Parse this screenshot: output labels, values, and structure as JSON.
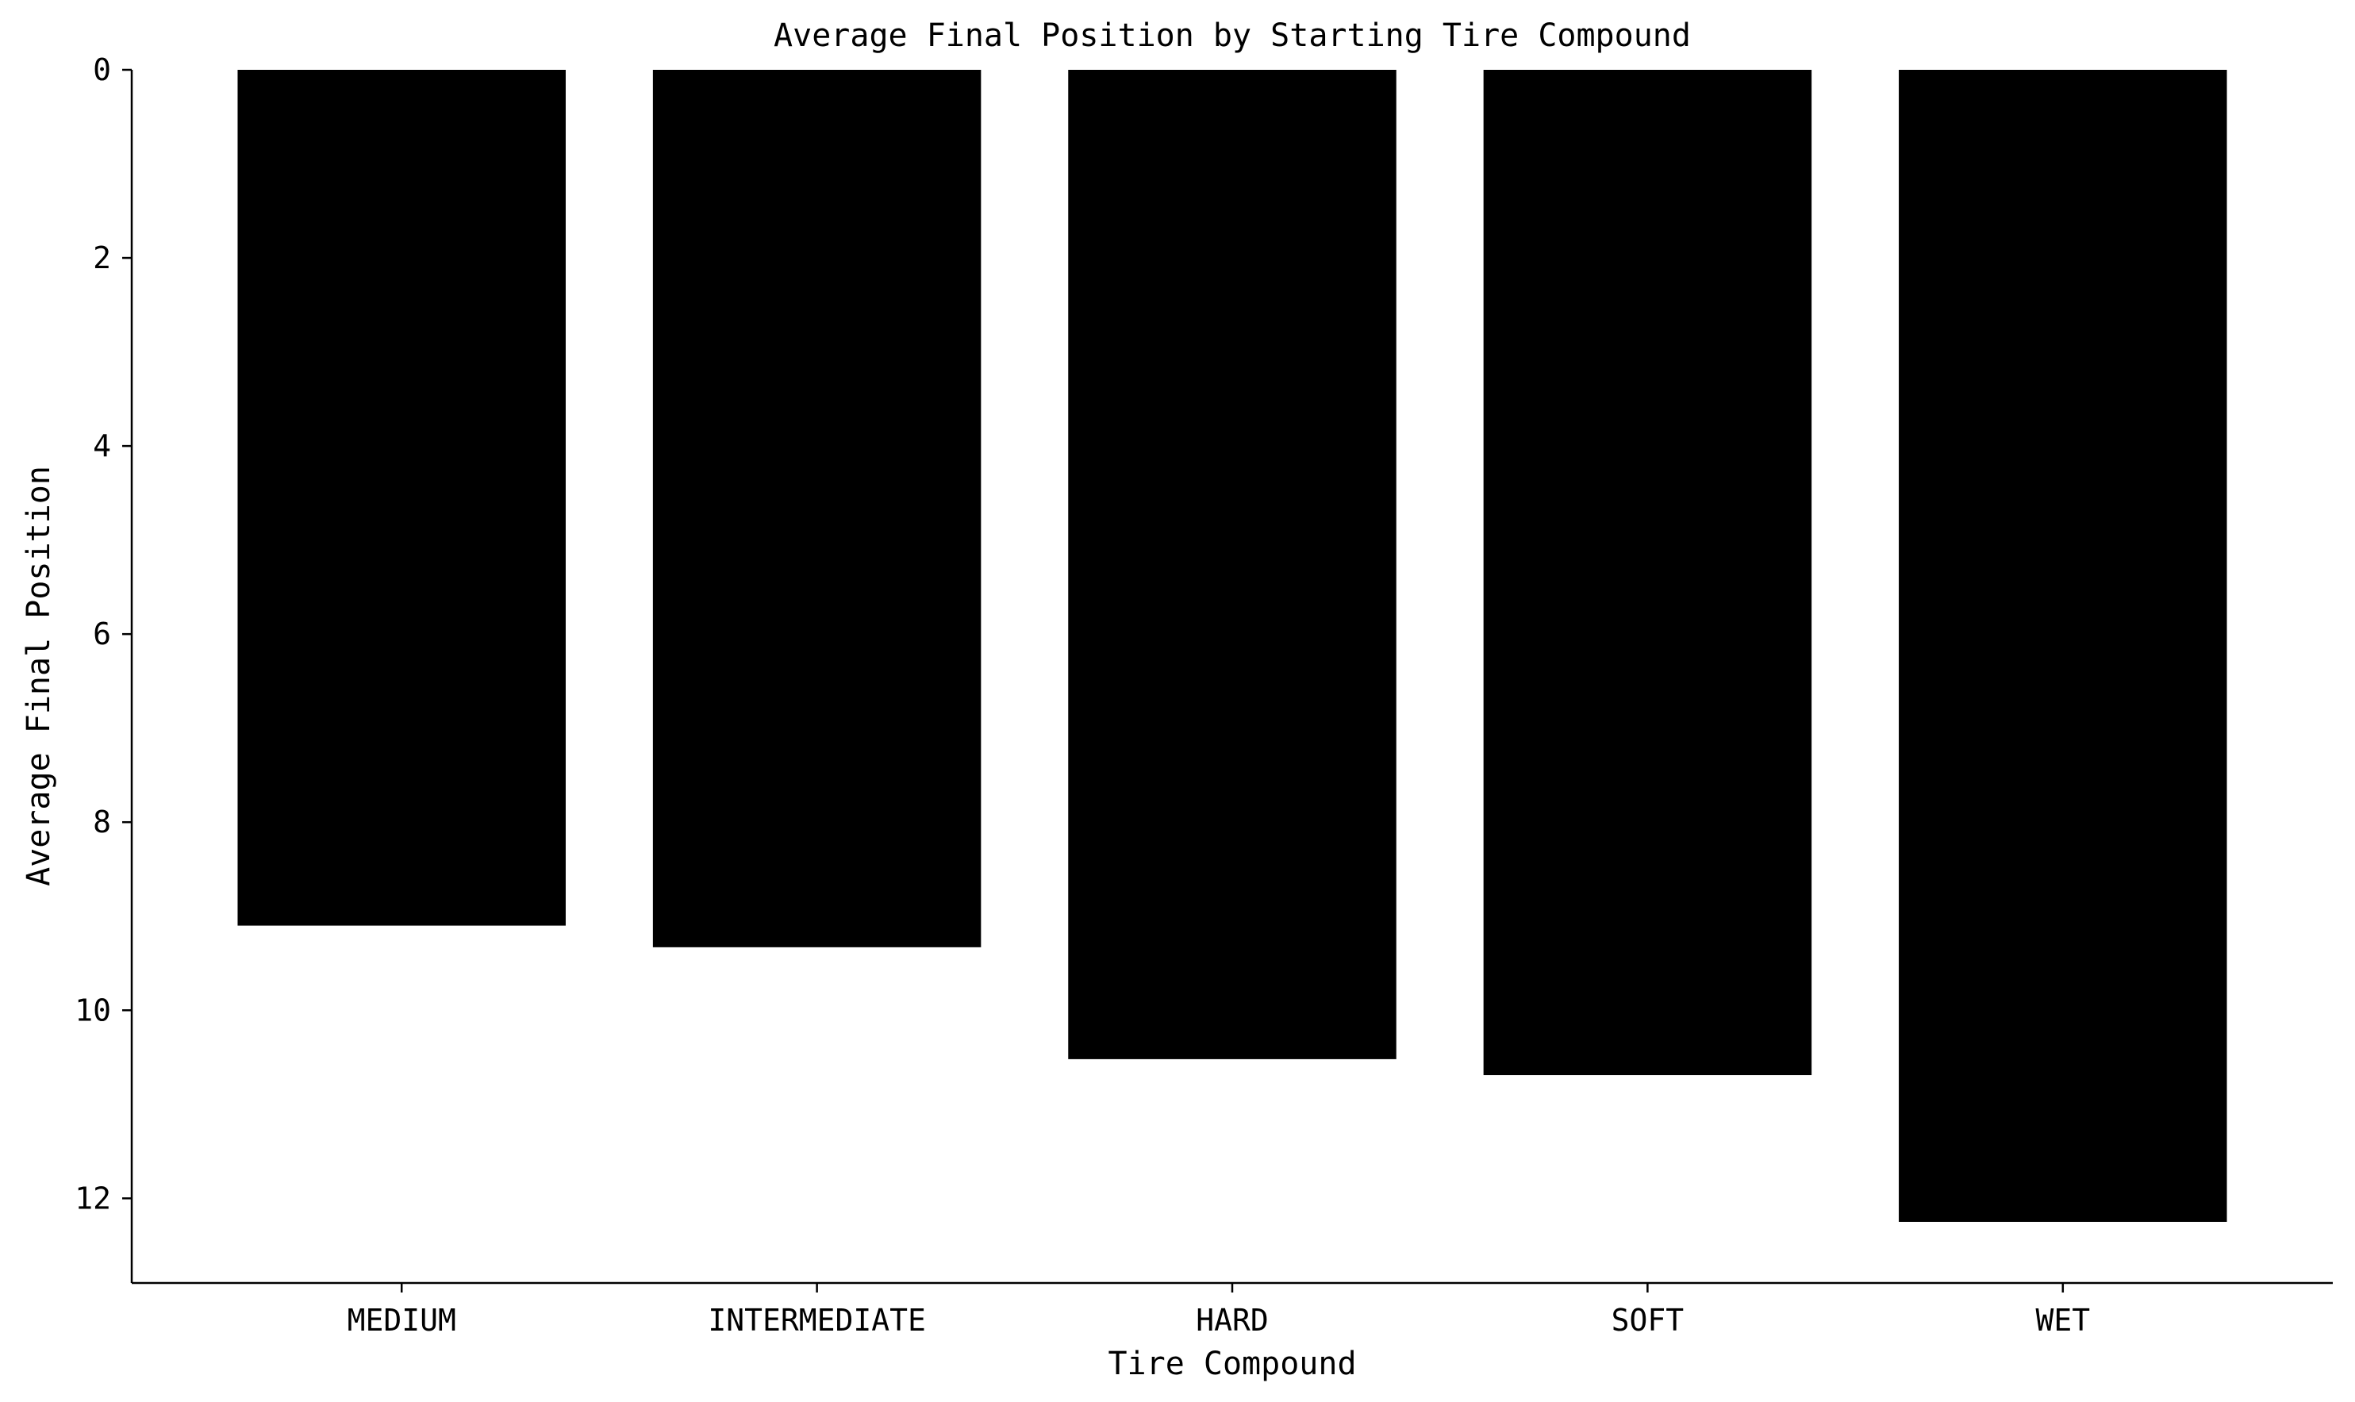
{
  "chart_data": {
    "type": "bar",
    "title": "Average Final Position by Starting Tire Compound",
    "xlabel": "Tire Compound",
    "ylabel": "Average Final Position",
    "categories": [
      "MEDIUM",
      "INTERMEDIATE",
      "HARD",
      "SOFT",
      "WET"
    ],
    "values": [
      9.1,
      9.33,
      10.52,
      10.69,
      12.25
    ],
    "ylim": [
      0,
      12.9
    ],
    "y_inverted": true,
    "yticks": [
      0,
      2,
      4,
      6,
      8,
      10,
      12
    ],
    "grid": false,
    "legend": "none",
    "bar_color": "#000000"
  }
}
